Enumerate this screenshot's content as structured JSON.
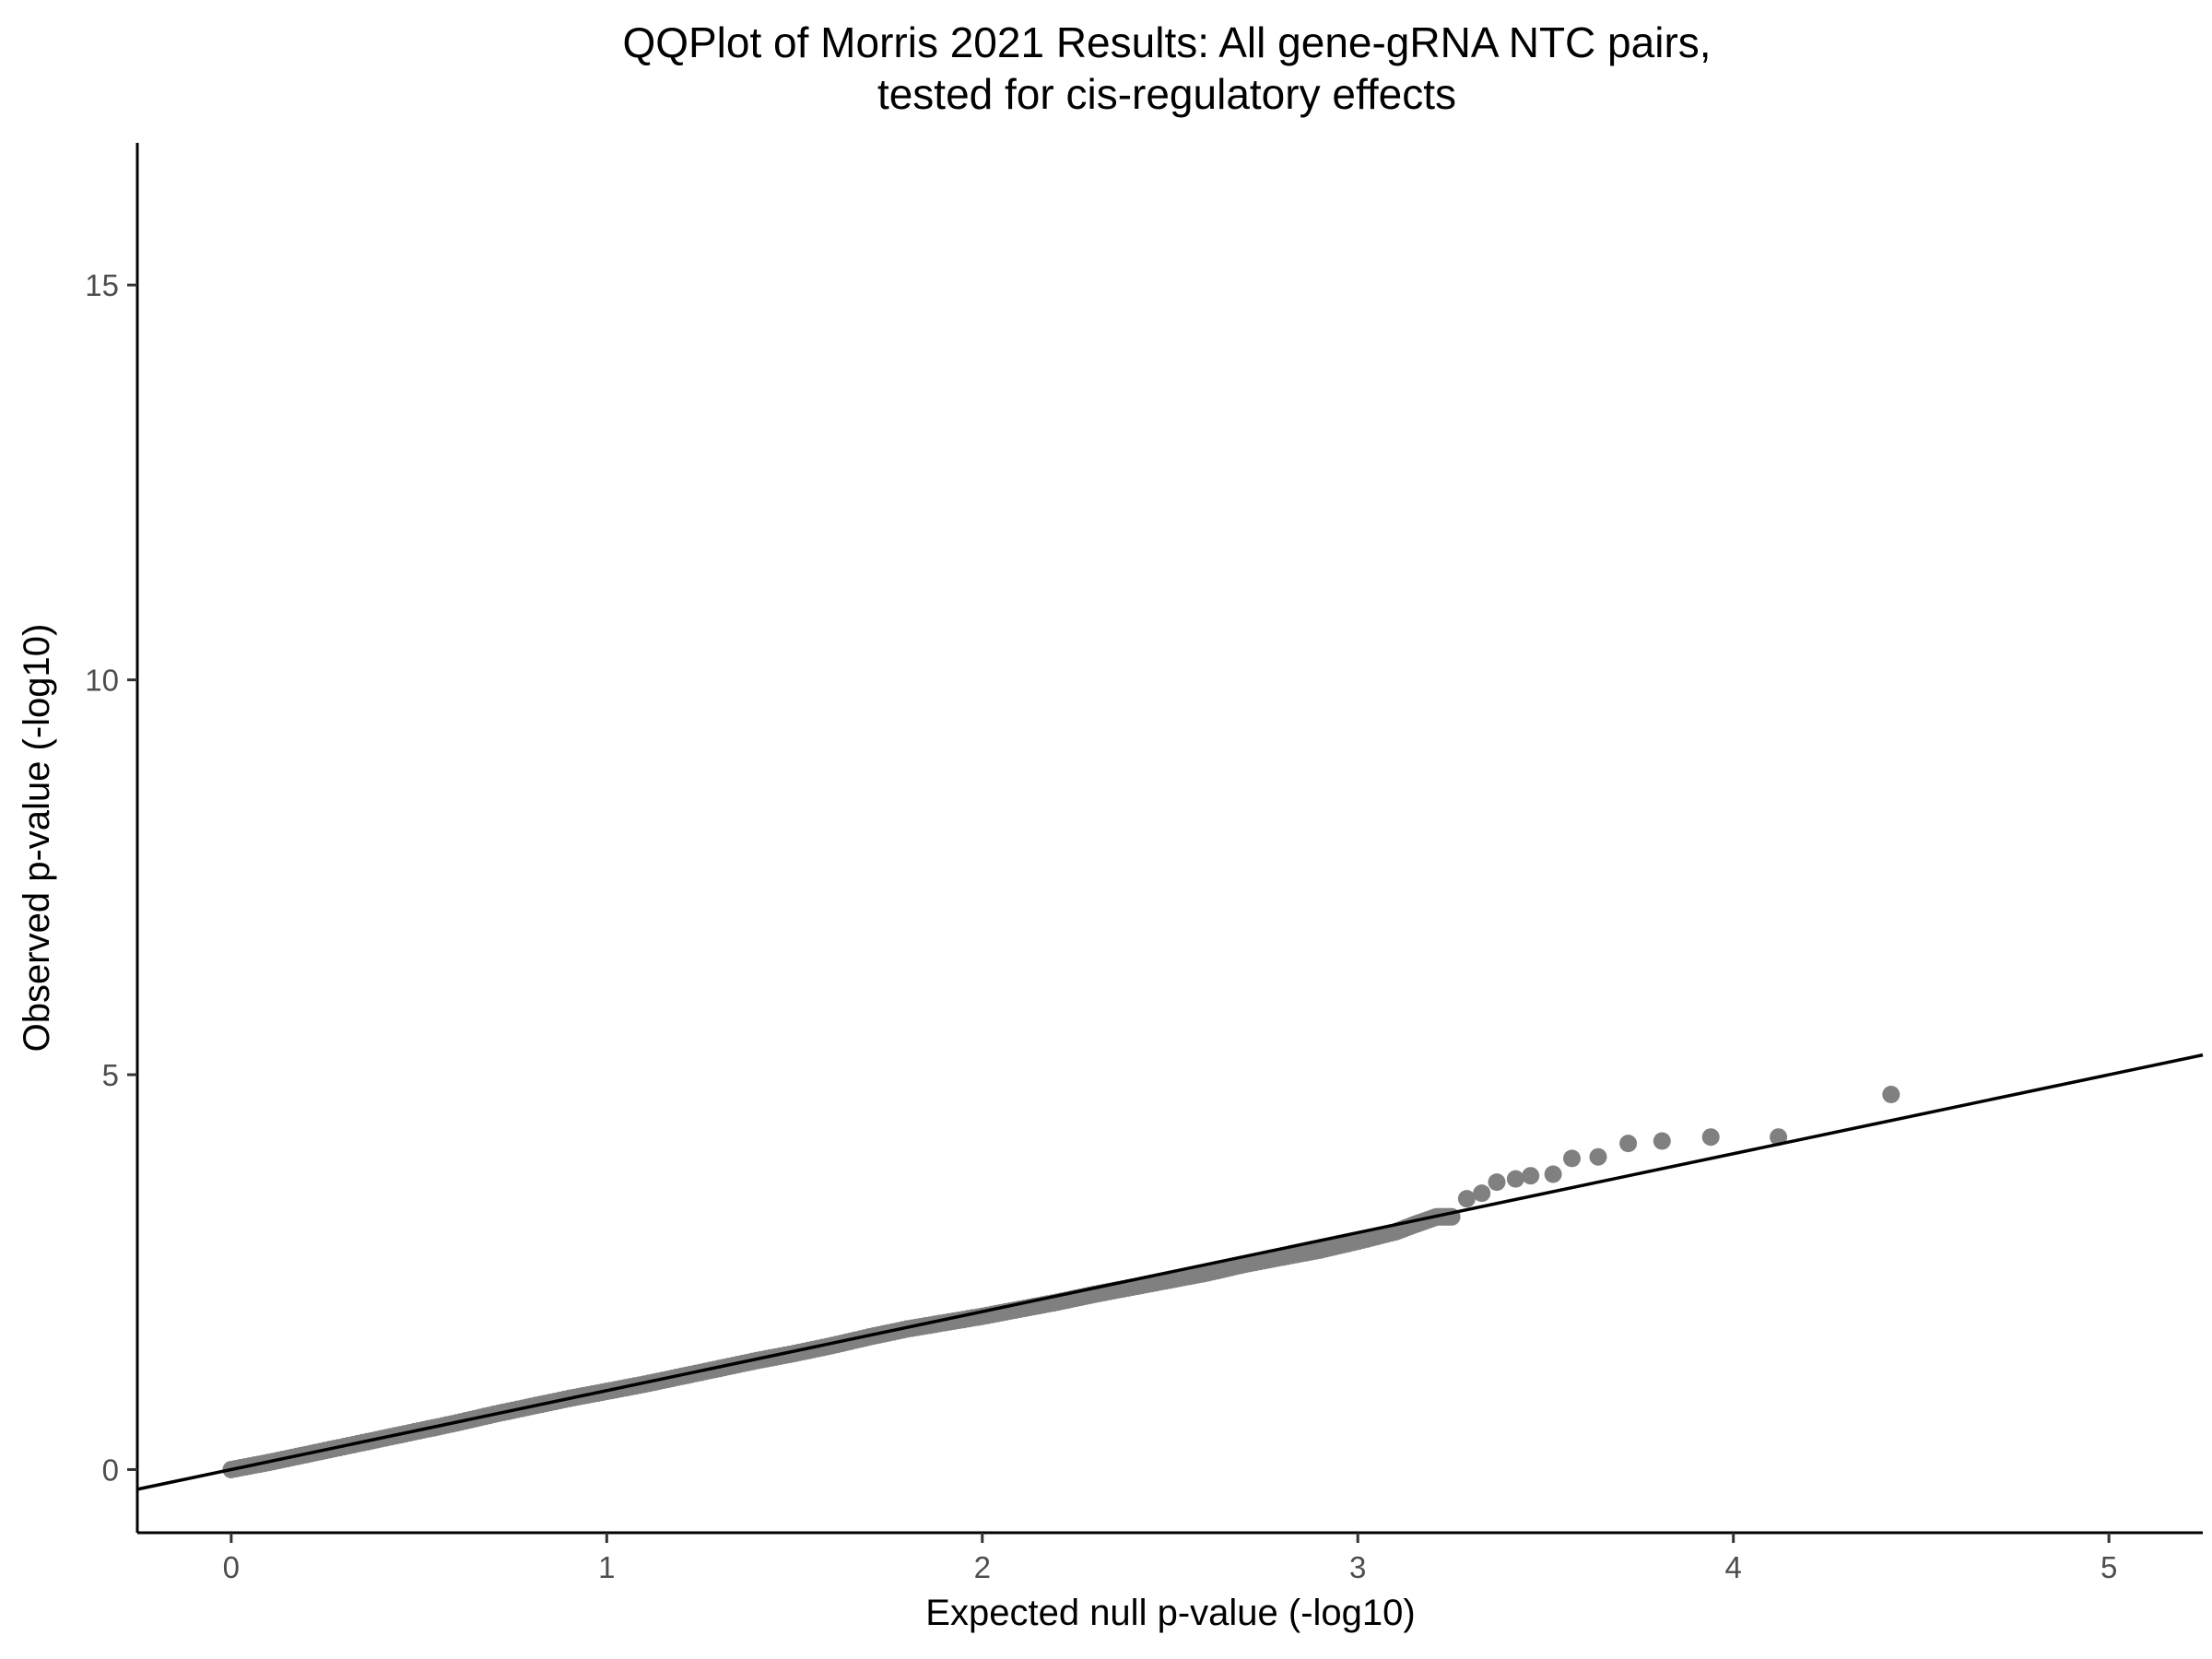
{
  "chart_data": {
    "type": "scatter",
    "title_lines": [
      "QQPlot of Morris 2021 Results: All gene-gRNA NTC pairs,",
      "tested for cis-regulatory effects"
    ],
    "xlabel": "Expected null p-value (-log10)",
    "ylabel": "Observed p-value (-log10)",
    "xlim": [
      -0.25,
      5.25
    ],
    "ylim": [
      -0.8,
      16.8
    ],
    "x_ticks": [
      {
        "value": 0,
        "label": "0"
      },
      {
        "value": 1,
        "label": "1"
      },
      {
        "value": 2,
        "label": "2"
      },
      {
        "value": 3,
        "label": "3"
      },
      {
        "value": 4,
        "label": "4"
      },
      {
        "value": 5,
        "label": "5"
      }
    ],
    "y_ticks": [
      {
        "value": 0,
        "label": "0"
      },
      {
        "value": 5,
        "label": "5"
      },
      {
        "value": 10,
        "label": "10"
      },
      {
        "value": 15,
        "label": "15"
      }
    ],
    "grid": false,
    "reference_line": {
      "intercept": 0,
      "slope": 1,
      "color": "#000000"
    },
    "point_color": "#808080",
    "series": [
      {
        "points": [
          [
            0.0,
            0.0
          ],
          [
            0.1,
            0.09
          ],
          [
            0.2,
            0.19
          ],
          [
            0.3,
            0.29
          ],
          [
            0.4,
            0.39
          ],
          [
            0.5,
            0.49
          ],
          [
            0.6,
            0.59
          ],
          [
            0.7,
            0.7
          ],
          [
            0.8,
            0.8
          ],
          [
            0.9,
            0.9
          ],
          [
            1.0,
            0.99
          ],
          [
            1.1,
            1.08
          ],
          [
            1.2,
            1.18
          ],
          [
            1.3,
            1.28
          ],
          [
            1.4,
            1.38
          ],
          [
            1.5,
            1.47
          ],
          [
            1.6,
            1.57
          ],
          [
            1.7,
            1.68
          ],
          [
            1.8,
            1.78
          ],
          [
            1.9,
            1.86
          ],
          [
            2.0,
            1.94
          ],
          [
            2.1,
            2.03
          ],
          [
            2.2,
            2.12
          ],
          [
            2.3,
            2.22
          ],
          [
            2.4,
            2.31
          ],
          [
            2.5,
            2.4
          ],
          [
            2.6,
            2.49
          ],
          [
            2.7,
            2.6
          ],
          [
            2.8,
            2.69
          ],
          [
            2.9,
            2.78
          ],
          [
            3.0,
            2.89
          ],
          [
            3.1,
            3.01
          ],
          [
            3.15,
            3.1
          ],
          [
            3.18,
            3.15
          ],
          [
            3.21,
            3.2
          ],
          [
            3.25,
            3.2
          ],
          [
            3.29,
            3.43
          ],
          [
            3.33,
            3.5
          ],
          [
            3.37,
            3.64
          ],
          [
            3.42,
            3.68
          ],
          [
            3.46,
            3.72
          ],
          [
            3.52,
            3.74
          ],
          [
            3.57,
            3.94
          ],
          [
            3.64,
            3.96
          ],
          [
            3.72,
            4.13
          ],
          [
            3.81,
            4.16
          ],
          [
            3.94,
            4.21
          ],
          [
            4.12,
            4.21
          ],
          [
            4.42,
            4.75
          ]
        ]
      }
    ]
  }
}
